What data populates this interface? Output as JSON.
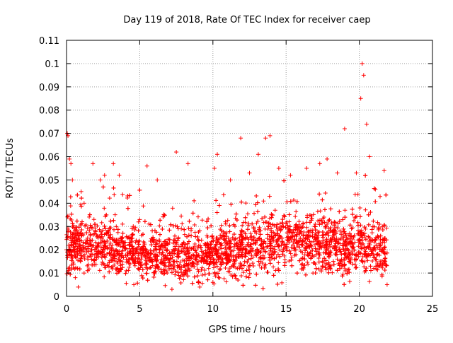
{
  "chart_data": {
    "type": "scatter",
    "title": "Day 119 of 2018, Rate Of TEC Index for receiver caep",
    "xlabel": "GPS time / hours",
    "ylabel": "ROTI / TECUs",
    "xlim": [
      0,
      25
    ],
    "ylim": [
      0,
      0.11
    ],
    "x_ticks": [
      "0",
      "5",
      "10",
      "15",
      "20",
      "25"
    ],
    "y_ticks": [
      "0",
      "0.01",
      "0.02",
      "0.03",
      "0.04",
      "0.05",
      "0.06",
      "0.07",
      "0.08",
      "0.09",
      "0.1",
      "0.11"
    ],
    "grid": true,
    "marker": "+",
    "series_color": "#ff0000",
    "sampled_points": [
      {
        "x": 0.0,
        "y": 0.02
      },
      {
        "x": 0.05,
        "y": 0.07
      },
      {
        "x": 0.1,
        "y": 0.069
      },
      {
        "x": 0.2,
        "y": 0.059
      },
      {
        "x": 0.3,
        "y": 0.057
      },
      {
        "x": 0.4,
        "y": 0.05
      },
      {
        "x": 0.6,
        "y": 0.008
      },
      {
        "x": 0.8,
        "y": 0.004
      },
      {
        "x": 1.0,
        "y": 0.045
      },
      {
        "x": 1.2,
        "y": 0.04
      },
      {
        "x": 1.8,
        "y": 0.057
      },
      {
        "x": 2.3,
        "y": 0.05
      },
      {
        "x": 2.6,
        "y": 0.052
      },
      {
        "x": 3.2,
        "y": 0.057
      },
      {
        "x": 3.6,
        "y": 0.052
      },
      {
        "x": 4.6,
        "y": 0.005
      },
      {
        "x": 5.5,
        "y": 0.056
      },
      {
        "x": 6.2,
        "y": 0.05
      },
      {
        "x": 7.5,
        "y": 0.062
      },
      {
        "x": 7.2,
        "y": 0.003
      },
      {
        "x": 8.3,
        "y": 0.057
      },
      {
        "x": 9.1,
        "y": 0.004
      },
      {
        "x": 10.0,
        "y": 0.006
      },
      {
        "x": 10.1,
        "y": 0.055
      },
      {
        "x": 10.3,
        "y": 0.061
      },
      {
        "x": 11.2,
        "y": 0.05
      },
      {
        "x": 11.9,
        "y": 0.068
      },
      {
        "x": 12.5,
        "y": 0.053
      },
      {
        "x": 13.1,
        "y": 0.061
      },
      {
        "x": 13.6,
        "y": 0.068
      },
      {
        "x": 13.9,
        "y": 0.069
      },
      {
        "x": 14.5,
        "y": 0.055
      },
      {
        "x": 15.3,
        "y": 0.052
      },
      {
        "x": 16.4,
        "y": 0.055
      },
      {
        "x": 17.3,
        "y": 0.057
      },
      {
        "x": 17.8,
        "y": 0.059
      },
      {
        "x": 18.5,
        "y": 0.053
      },
      {
        "x": 19.0,
        "y": 0.072
      },
      {
        "x": 19.8,
        "y": 0.053
      },
      {
        "x": 20.1,
        "y": 0.085
      },
      {
        "x": 20.2,
        "y": 0.1
      },
      {
        "x": 20.3,
        "y": 0.095
      },
      {
        "x": 20.5,
        "y": 0.074
      },
      {
        "x": 20.7,
        "y": 0.06
      },
      {
        "x": 21.1,
        "y": 0.046
      },
      {
        "x": 21.7,
        "y": 0.054
      },
      {
        "x": 21.9,
        "y": 0.005
      }
    ],
    "envelope": {
      "description_hours": [
        0,
        1,
        2,
        3,
        4,
        5,
        6,
        7,
        8,
        9,
        10,
        11,
        12,
        13,
        14,
        15,
        16,
        17,
        18,
        19,
        20,
        21,
        21.9
      ],
      "median": [
        0.021,
        0.022,
        0.022,
        0.022,
        0.019,
        0.018,
        0.019,
        0.018,
        0.018,
        0.017,
        0.018,
        0.019,
        0.02,
        0.022,
        0.024,
        0.025,
        0.024,
        0.023,
        0.022,
        0.021,
        0.023,
        0.021,
        0.019
      ],
      "spread": [
        0.01,
        0.01,
        0.01,
        0.011,
        0.009,
        0.009,
        0.01,
        0.01,
        0.01,
        0.009,
        0.009,
        0.01,
        0.011,
        0.012,
        0.013,
        0.012,
        0.012,
        0.012,
        0.011,
        0.011,
        0.012,
        0.011,
        0.01
      ]
    }
  }
}
